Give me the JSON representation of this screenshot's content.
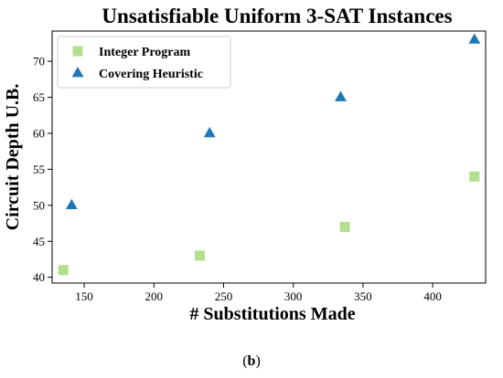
{
  "chart_data": {
    "type": "scatter",
    "title": "Unsatisfiable Uniform 3-SAT Instances",
    "xlabel": "# Substitutions Made",
    "ylabel": "Circuit Depth U.B.",
    "xlim": [
      127,
      438
    ],
    "ylim": [
      39.2,
      74.2
    ],
    "xticks": [
      150,
      200,
      250,
      300,
      350,
      400
    ],
    "yticks": [
      40,
      45,
      50,
      55,
      60,
      65,
      70
    ],
    "grid": false,
    "legend_position": "top-left",
    "series": [
      {
        "name": "Integer Program",
        "marker": "square",
        "color": "#b2df8a",
        "points": [
          [
            135,
            41
          ],
          [
            233,
            43
          ],
          [
            337,
            47
          ],
          [
            430,
            54
          ]
        ]
      },
      {
        "name": "Covering Heuristic",
        "marker": "triangle",
        "color": "#1f78b4",
        "points": [
          [
            141,
            50
          ],
          [
            240,
            60
          ],
          [
            334,
            65
          ],
          [
            430,
            73
          ]
        ]
      }
    ]
  },
  "caption": {
    "open": "(",
    "letter": "b",
    "close": ")"
  }
}
